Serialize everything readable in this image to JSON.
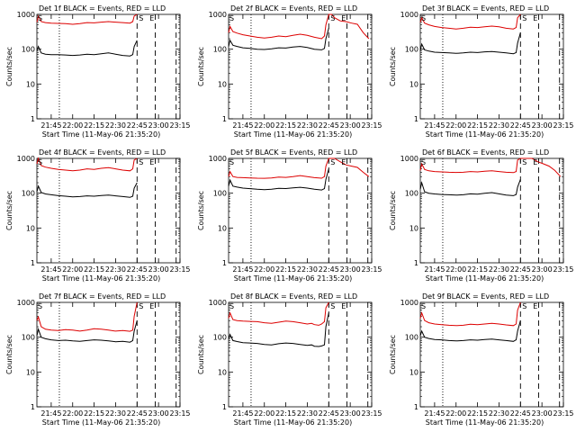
{
  "chart_data": {
    "type": "line",
    "layout": "3x3 grid",
    "shared": {
      "title_suffix": "BLACK = Events, RED = LLD",
      "xlabel": "Start Time (11-May-06 21:35:20)",
      "ylabel": "Counts/sec",
      "x_unit": "minutes since 21:35:20",
      "xlim": [
        0,
        100
      ],
      "ylim": [
        1,
        1000
      ],
      "yscale": "log",
      "x_ticks": [
        {
          "value": 10,
          "label": "21:45"
        },
        {
          "value": 25,
          "label": "22:00"
        },
        {
          "value": 40,
          "label": "22:15"
        },
        {
          "value": 55,
          "label": "22:30"
        },
        {
          "value": 70,
          "label": "22:45"
        },
        {
          "value": 85,
          "label": "23:00"
        },
        {
          "value": 100,
          "label": "23:15"
        }
      ],
      "y_ticks": [
        {
          "value": 1,
          "label": "1"
        },
        {
          "value": 10,
          "label": "10"
        },
        {
          "value": 100,
          "label": "100"
        },
        {
          "value": 1000,
          "label": "1000"
        }
      ],
      "markers": [
        {
          "name": "dotted",
          "x": 15.7,
          "style": "dotted"
        },
        {
          "name": "dash-1",
          "x": 70,
          "style": "dashed"
        },
        {
          "name": "dash-2",
          "x": 82.7,
          "style": "dashed"
        },
        {
          "name": "dash-3",
          "x": 97.3,
          "style": "dashed"
        }
      ],
      "flag_left": "S",
      "flags_right": [
        "S",
        "E"
      ],
      "series_names": [
        "Events",
        "LLD"
      ],
      "series_colors": {
        "Events": "#000000",
        "LLD": "#dd0000"
      }
    },
    "panels": [
      {
        "title": "Det 1f BLACK = Events, RED = LLD",
        "series": [
          {
            "name": "Events",
            "x": [
              0,
              1,
              3,
              6,
              10,
              15,
              20,
              25,
              30,
              35,
              40,
              45,
              50,
              55,
              60,
              65,
              67,
              68,
              70
            ],
            "y": [
              90,
              120,
              78,
              72,
              70,
              70,
              68,
              66,
              68,
              72,
              70,
              74,
              78,
              72,
              66,
              64,
              70,
              120,
              180
            ]
          },
          {
            "name": "LLD",
            "x": [
              0,
              1,
              3,
              6,
              10,
              15,
              20,
              25,
              30,
              35,
              40,
              45,
              50,
              55,
              60,
              65,
              67,
              68,
              70
            ],
            "y": [
              600,
              900,
              620,
              580,
              560,
              550,
              540,
              520,
              540,
              580,
              570,
              600,
              620,
              600,
              580,
              560,
              620,
              900,
              1000
            ]
          }
        ]
      },
      {
        "title": "Det 2f BLACK = Events, RED = LLD",
        "series": [
          {
            "name": "Events",
            "x": [
              0,
              1,
              3,
              6,
              10,
              15,
              20,
              25,
              30,
              35,
              40,
              45,
              50,
              55,
              60,
              65,
              67,
              68,
              70
            ],
            "y": [
              120,
              180,
              130,
              120,
              110,
              105,
              100,
              98,
              102,
              110,
              108,
              115,
              120,
              112,
              100,
              96,
              105,
              200,
              400
            ]
          },
          {
            "name": "LLD",
            "x": [
              0,
              1,
              3,
              6,
              10,
              15,
              20,
              25,
              30,
              35,
              40,
              45,
              50,
              55,
              60,
              65,
              67,
              68,
              70,
              72,
              74,
              78,
              82,
              86,
              90,
              94,
              98
            ],
            "y": [
              300,
              450,
              320,
              290,
              260,
              240,
              220,
              210,
              220,
              240,
              230,
              250,
              270,
              250,
              220,
              200,
              240,
              500,
              1000,
              1000,
              800,
              650,
              620,
              560,
              520,
              300,
              200
            ]
          }
        ]
      },
      {
        "title": "Det 3f BLACK = Events, RED = LLD",
        "series": [
          {
            "name": "Events",
            "x": [
              0,
              1,
              3,
              6,
              10,
              15,
              20,
              25,
              30,
              35,
              40,
              45,
              50,
              55,
              60,
              65,
              67,
              68,
              70
            ],
            "y": [
              90,
              140,
              95,
              88,
              82,
              80,
              78,
              76,
              78,
              82,
              80,
              84,
              86,
              82,
              78,
              74,
              80,
              150,
              300
            ]
          },
          {
            "name": "LLD",
            "x": [
              0,
              1,
              3,
              6,
              10,
              15,
              20,
              25,
              30,
              35,
              40,
              45,
              50,
              55,
              60,
              65,
              67,
              68,
              70
            ],
            "y": [
              600,
              800,
              560,
              500,
              450,
              420,
              400,
              380,
              400,
              430,
              420,
              440,
              460,
              440,
              400,
              380,
              420,
              800,
              1000
            ]
          }
        ]
      },
      {
        "title": "Det 4f BLACK = Events, RED = LLD",
        "series": [
          {
            "name": "Events",
            "x": [
              0,
              1,
              3,
              6,
              10,
              15,
              20,
              25,
              30,
              35,
              40,
              45,
              50,
              55,
              60,
              65,
              67,
              68,
              70
            ],
            "y": [
              110,
              160,
              105,
              95,
              90,
              85,
              82,
              78,
              80,
              84,
              82,
              86,
              88,
              84,
              80,
              76,
              82,
              140,
              200
            ]
          },
          {
            "name": "LLD",
            "x": [
              0,
              1,
              3,
              6,
              10,
              15,
              20,
              25,
              30,
              35,
              40,
              45,
              50,
              55,
              60,
              65,
              67,
              68,
              70
            ],
            "y": [
              700,
              1000,
              620,
              560,
              520,
              480,
              460,
              440,
              460,
              500,
              480,
              520,
              540,
              500,
              460,
              440,
              500,
              900,
              1000
            ]
          }
        ]
      },
      {
        "title": "Det 5f BLACK = Events, RED = LLD",
        "series": [
          {
            "name": "Events",
            "x": [
              0,
              1,
              3,
              6,
              10,
              15,
              20,
              25,
              30,
              35,
              40,
              45,
              50,
              55,
              60,
              65,
              67,
              68,
              70
            ],
            "y": [
              160,
              240,
              160,
              150,
              140,
              135,
              130,
              126,
              130,
              138,
              136,
              142,
              148,
              140,
              130,
              124,
              135,
              250,
              500
            ]
          },
          {
            "name": "LLD",
            "x": [
              0,
              1,
              3,
              6,
              10,
              15,
              20,
              25,
              30,
              35,
              40,
              45,
              50,
              55,
              60,
              65,
              67,
              68,
              70,
              72,
              74,
              78,
              82,
              86,
              90,
              94,
              98
            ],
            "y": [
              300,
              420,
              300,
              285,
              280,
              275,
              270,
              268,
              275,
              290,
              285,
              300,
              320,
              300,
              280,
              270,
              300,
              600,
              1000,
              1000,
              1000,
              800,
              650,
              600,
              550,
              400,
              300
            ]
          }
        ]
      },
      {
        "title": "Det 6f BLACK = Events, RED = LLD",
        "series": [
          {
            "name": "Events",
            "x": [
              0,
              1,
              3,
              6,
              10,
              15,
              20,
              25,
              30,
              35,
              40,
              45,
              50,
              55,
              60,
              65,
              67,
              68,
              70
            ],
            "y": [
              130,
              200,
              110,
              100,
              95,
              92,
              90,
              88,
              90,
              96,
              94,
              100,
              104,
              96,
              88,
              85,
              92,
              150,
              250
            ]
          },
          {
            "name": "LLD",
            "x": [
              0,
              1,
              3,
              6,
              10,
              15,
              20,
              25,
              30,
              35,
              40,
              45,
              50,
              55,
              60,
              65,
              67,
              68,
              70,
              72,
              74,
              78,
              82,
              86,
              90,
              94,
              98
            ],
            "y": [
              450,
              700,
              480,
              440,
              420,
              410,
              400,
              395,
              400,
              420,
              410,
              430,
              440,
              420,
              400,
              390,
              420,
              900,
              1000,
              1000,
              1000,
              1000,
              800,
              700,
              600,
              450,
              300
            ]
          }
        ]
      },
      {
        "title": "Det 7f BLACK = Events, RED = LLD",
        "series": [
          {
            "name": "Events",
            "x": [
              0,
              1,
              3,
              6,
              10,
              15,
              20,
              25,
              30,
              35,
              40,
              45,
              50,
              55,
              60,
              65,
              67,
              68,
              70
            ],
            "y": [
              110,
              170,
              100,
              90,
              84,
              80,
              82,
              78,
              76,
              80,
              84,
              82,
              78,
              74,
              76,
              72,
              80,
              150,
              300
            ]
          },
          {
            "name": "LLD",
            "x": [
              0,
              1,
              3,
              6,
              10,
              15,
              20,
              25,
              30,
              35,
              40,
              45,
              50,
              55,
              60,
              65,
              67,
              68,
              70
            ],
            "y": [
              300,
              380,
              200,
              170,
              160,
              155,
              165,
              160,
              150,
              160,
              175,
              170,
              160,
              150,
              155,
              148,
              160,
              400,
              1000
            ]
          }
        ]
      },
      {
        "title": "Det 8f BLACK = Events, RED = LLD",
        "series": [
          {
            "name": "Events",
            "x": [
              0,
              1,
              3,
              6,
              10,
              15,
              20,
              25,
              30,
              35,
              40,
              45,
              50,
              55,
              58,
              60,
              63,
              65,
              67,
              68,
              70
            ],
            "y": [
              90,
              120,
              80,
              75,
              70,
              68,
              66,
              62,
              60,
              65,
              68,
              66,
              62,
              58,
              60,
              55,
              54,
              56,
              60,
              200,
              500
            ]
          },
          {
            "name": "LLD",
            "x": [
              0,
              1,
              3,
              6,
              10,
              15,
              20,
              25,
              30,
              35,
              40,
              45,
              50,
              55,
              58,
              60,
              63,
              65,
              67,
              68,
              70
            ],
            "y": [
              350,
              500,
              320,
              300,
              290,
              285,
              280,
              260,
              250,
              270,
              290,
              280,
              260,
              240,
              250,
              230,
              220,
              240,
              280,
              700,
              1000
            ]
          }
        ]
      },
      {
        "title": "Det 9f BLACK = Events, RED = LLD",
        "series": [
          {
            "name": "Events",
            "x": [
              0,
              1,
              3,
              6,
              10,
              15,
              20,
              25,
              30,
              35,
              40,
              45,
              50,
              55,
              60,
              65,
              67,
              68,
              70
            ],
            "y": [
              110,
              150,
              100,
              92,
              86,
              84,
              80,
              78,
              80,
              84,
              82,
              86,
              88,
              84,
              80,
              76,
              84,
              150,
              300
            ]
          },
          {
            "name": "LLD",
            "x": [
              0,
              1,
              3,
              6,
              10,
              15,
              20,
              25,
              30,
              35,
              40,
              45,
              50,
              55,
              60,
              65,
              67,
              68,
              70
            ],
            "y": [
              350,
              500,
              300,
              260,
              240,
              230,
              220,
              215,
              220,
              235,
              230,
              240,
              250,
              240,
              225,
              215,
              240,
              600,
              1000
            ]
          }
        ]
      }
    ]
  }
}
